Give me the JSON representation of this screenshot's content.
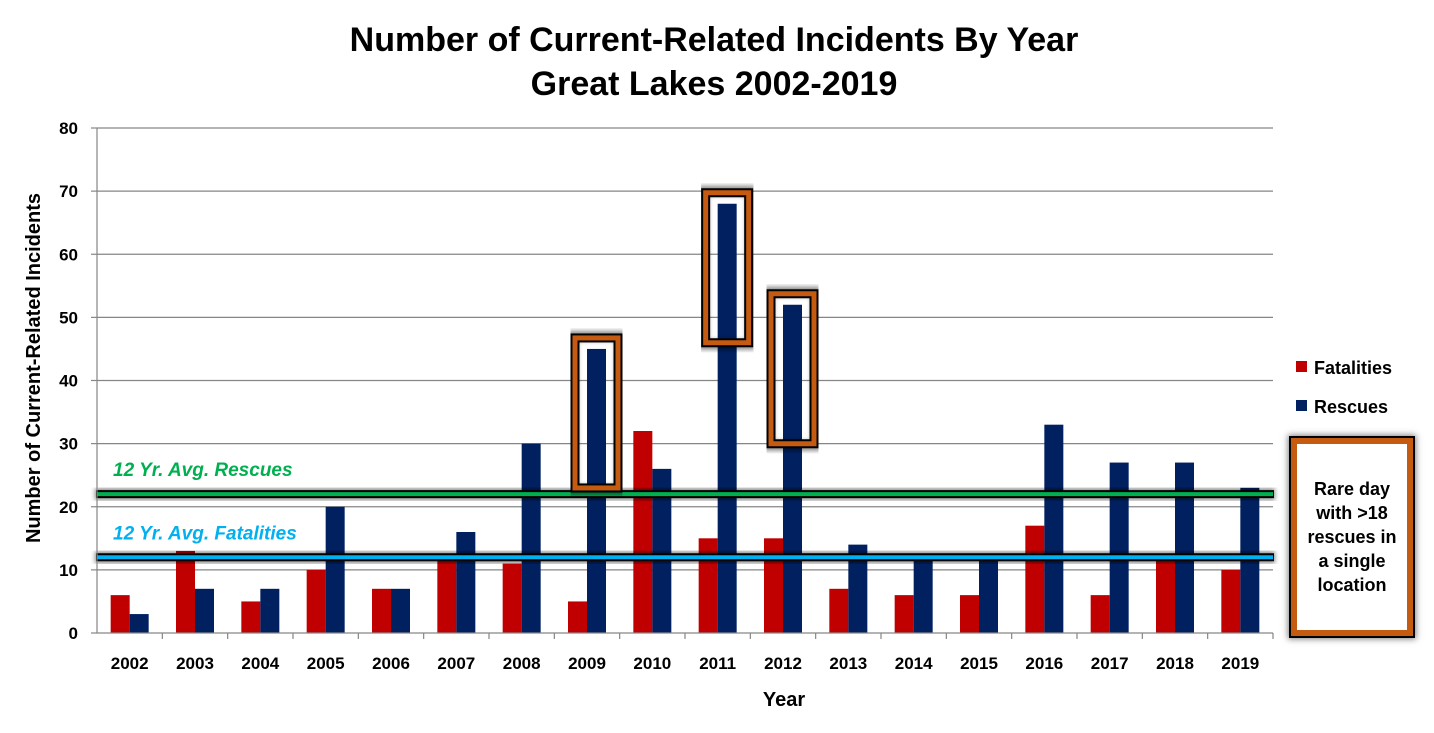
{
  "chart_data": {
    "type": "bar",
    "title": [
      "Number of Current-Related Incidents By Year",
      "Great Lakes 2002-2019"
    ],
    "xlabel": "Year",
    "ylabel": "Number of Current-Related Incidents",
    "ylim": [
      0,
      80
    ],
    "yticks": [
      0,
      10,
      20,
      30,
      40,
      50,
      60,
      70,
      80
    ],
    "grid": true,
    "legend_position": "right",
    "categories": [
      "2002",
      "2003",
      "2004",
      "2005",
      "2006",
      "2007",
      "2008",
      "2009",
      "2010",
      "2011",
      "2012",
      "2013",
      "2014",
      "2015",
      "2016",
      "2017",
      "2018",
      "2019"
    ],
    "series": [
      {
        "name": "Fatalities",
        "color": "#c00000",
        "values": [
          6,
          13,
          5,
          10,
          7,
          12,
          11,
          5,
          32,
          15,
          15,
          7,
          6,
          6,
          17,
          6,
          12,
          10
        ]
      },
      {
        "name": "Rescues",
        "color": "#002060",
        "values": [
          3,
          7,
          7,
          20,
          7,
          16,
          30,
          45,
          26,
          68,
          52,
          14,
          12,
          12,
          33,
          27,
          27,
          23
        ]
      }
    ],
    "reference_lines": [
      {
        "label": "12 Yr. Avg. Rescues",
        "value": 22,
        "color": "#00b050"
      },
      {
        "label": "12 Yr. Avg. Fatalities",
        "value": 12,
        "color": "#00b0f0"
      }
    ],
    "highlighted_categories": [
      "2009",
      "2011",
      "2012"
    ],
    "highlight_color": "#c55a11",
    "annotation": "Rare day with >18 rescues in a single location"
  }
}
